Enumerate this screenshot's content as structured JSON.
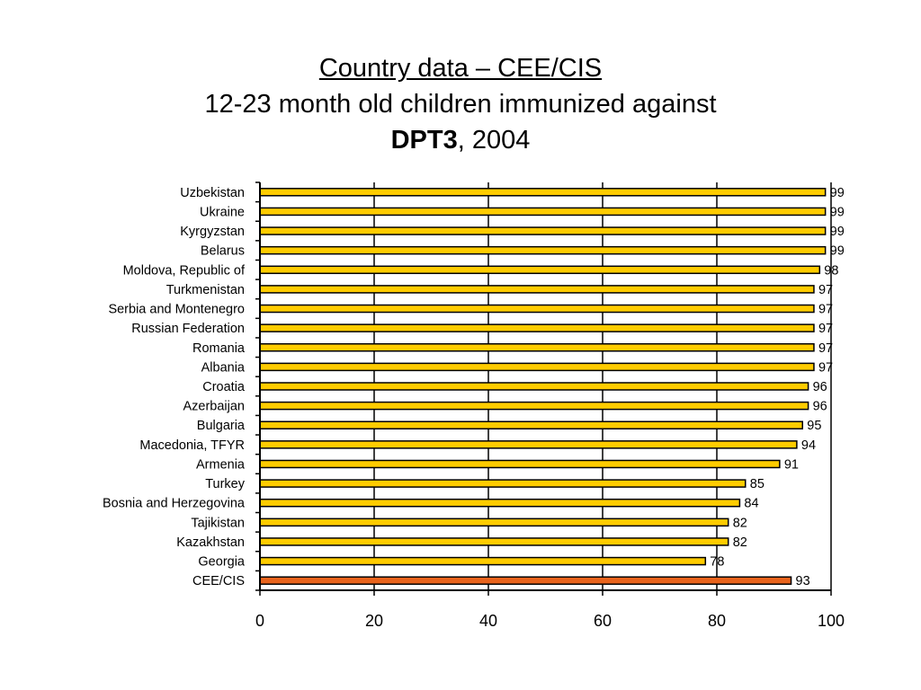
{
  "title": {
    "line1": "Country data – CEE/CIS",
    "line2": "12-23 month old children immunized against",
    "line3_bold": "DPT3",
    "line3_rest": ", 2004"
  },
  "colors": {
    "bar": "#FFCC00",
    "aggregate_bar": "#E8631C",
    "bar_outline": "#000000"
  },
  "chart_data": {
    "type": "bar",
    "orientation": "horizontal",
    "categories": [
      "Uzbekistan",
      "Ukraine",
      "Kyrgyzstan",
      "Belarus",
      "Moldova, Republic of",
      "Turkmenistan",
      "Serbia and Montenegro",
      "Russian Federation",
      "Romania",
      "Albania",
      "Croatia",
      "Azerbaijan",
      "Bulgaria",
      "Macedonia, TFYR",
      "Armenia",
      "Turkey",
      "Bosnia and Herzegovina",
      "Tajikistan",
      "Kazakhstan",
      "Georgia",
      "CEE/CIS"
    ],
    "values": [
      99,
      99,
      99,
      99,
      98,
      97,
      97,
      97,
      97,
      97,
      96,
      96,
      95,
      94,
      91,
      85,
      84,
      82,
      82,
      78,
      93
    ],
    "highlight_category": "CEE/CIS",
    "xlim": [
      0,
      100
    ],
    "xticks": [
      0,
      20,
      40,
      60,
      80,
      100
    ],
    "data_labels": true,
    "grid": "vertical",
    "legend": "none"
  }
}
